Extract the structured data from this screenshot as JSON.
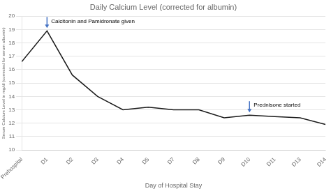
{
  "chart_data": {
    "type": "line",
    "title": "Daily Calcium Level (corrected for albumin)",
    "xlabel": "Day of Hospital Stay",
    "ylabel": "Serum Calcium Level in mg/dl (corrected for serum albumin)",
    "categories": [
      "Prehospital",
      "D1",
      "D2",
      "D3",
      "D4",
      "D5",
      "D7",
      "D8",
      "D9",
      "D10",
      "D11",
      "D13",
      "D14"
    ],
    "values": [
      16.6,
      18.9,
      15.6,
      14.0,
      13.0,
      13.2,
      13.0,
      13.0,
      12.4,
      12.6,
      12.5,
      12.4,
      11.9
    ],
    "color": "#1a1a1a",
    "ylim": [
      10,
      20
    ],
    "yticks": [
      10,
      11,
      12,
      13,
      14,
      15,
      16,
      17,
      18,
      19,
      20
    ],
    "grid": true,
    "annotations": [
      {
        "text": "Calcitonin and Pamidronate given",
        "x": "D1",
        "color": "#4472C4"
      },
      {
        "text": "Prednisone started",
        "x": "D10",
        "color": "#4472C4"
      }
    ]
  }
}
